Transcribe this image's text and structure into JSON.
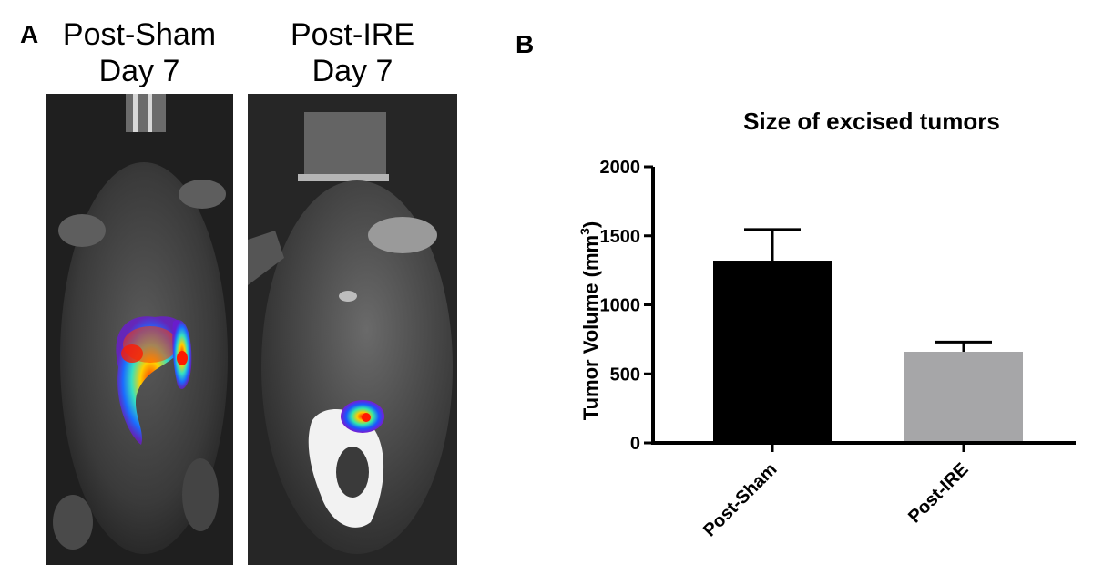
{
  "panel_a": {
    "letter": "A",
    "images": [
      {
        "title_line1": "Post-Sham",
        "title_line2": "Day 7"
      },
      {
        "title_line1": "Post-IRE",
        "title_line2": "Day 7"
      }
    ]
  },
  "panel_b": {
    "letter": "B"
  },
  "chart_data": {
    "type": "bar",
    "title": "Size of excised tumors",
    "ylabel": "Tumor Volume (mm",
    "ylabel_sup": "3",
    "ylabel_close": ")",
    "categories": [
      "Post-Sham",
      "Post-IRE"
    ],
    "values": [
      1320,
      660
    ],
    "errors": [
      225,
      70
    ],
    "colors": [
      "#000000",
      "#a6a6a8"
    ],
    "ylim": [
      0,
      2000
    ],
    "yticks": [
      0,
      500,
      1000,
      1500,
      2000
    ],
    "ytick_labels": [
      "0",
      "500",
      "1000",
      "1500",
      "2000"
    ],
    "grid": false
  }
}
